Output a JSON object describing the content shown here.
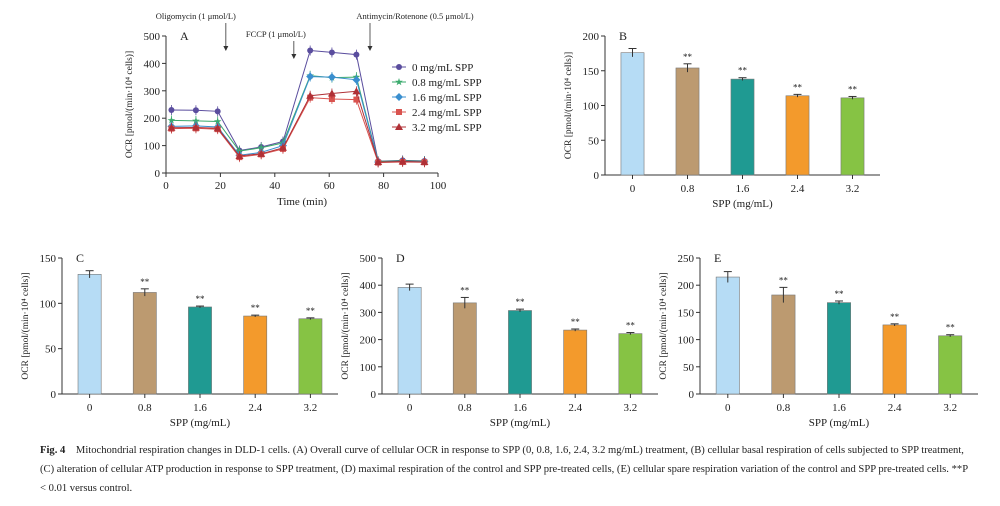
{
  "chart_data": [
    {
      "id": "A",
      "type": "line",
      "panel_label": "A",
      "xlabel": "Time (min)",
      "ylabel": "OCR [pmol/(min·10⁴ cells)]",
      "xlim": [
        0,
        100
      ],
      "ylim": [
        0,
        500
      ],
      "xticks": [
        0,
        20,
        40,
        60,
        80,
        100
      ],
      "yticks": [
        0,
        100,
        200,
        300,
        400,
        500
      ],
      "legend_position": "right",
      "annotations": [
        {
          "text": "Oligomycin (1 μmol/L)",
          "x": 22
        },
        {
          "text": "FCCP (1 μmol/L)",
          "x": 47
        },
        {
          "text": "Antimycin/Rotenone (0.5 μmol/L)",
          "x": 75
        }
      ],
      "series": [
        {
          "name": "0 mg/mL SPP",
          "color": "#5a4d9e",
          "marker": "circle",
          "x": [
            2,
            11,
            19,
            27,
            35,
            43,
            53,
            61,
            70,
            78,
            87,
            95
          ],
          "y": [
            230,
            229,
            225,
            82,
            95,
            115,
            447,
            440,
            432,
            43,
            46,
            44
          ]
        },
        {
          "name": "0.8 mg/mL SPP",
          "color": "#3aaa6c",
          "marker": "star",
          "x": [
            2,
            11,
            19,
            27,
            35,
            43,
            53,
            61,
            70,
            78,
            87,
            95
          ],
          "y": [
            192,
            190,
            188,
            80,
            92,
            110,
            355,
            348,
            350,
            42,
            44,
            43
          ]
        },
        {
          "name": "1.6 mg/mL SPP",
          "color": "#3a8fcf",
          "marker": "diamond",
          "x": [
            2,
            11,
            19,
            27,
            35,
            43,
            53,
            61,
            70,
            78,
            87,
            95
          ],
          "y": [
            170,
            172,
            168,
            65,
            75,
            100,
            352,
            350,
            340,
            40,
            42,
            41
          ]
        },
        {
          "name": "2.4 mg/mL SPP",
          "color": "#d9534f",
          "marker": "square",
          "x": [
            2,
            11,
            19,
            27,
            35,
            43,
            53,
            61,
            70,
            78,
            87,
            95
          ],
          "y": [
            162,
            163,
            160,
            58,
            68,
            88,
            275,
            270,
            268,
            38,
            40,
            39
          ]
        },
        {
          "name": "3.2 mg/mL SPP",
          "color": "#b03036",
          "marker": "triangle",
          "x": [
            2,
            11,
            19,
            27,
            35,
            43,
            53,
            61,
            70,
            78,
            87,
            95
          ],
          "y": [
            165,
            166,
            163,
            62,
            70,
            92,
            282,
            290,
            298,
            40,
            42,
            40
          ]
        }
      ]
    },
    {
      "id": "B",
      "type": "bar",
      "panel_label": "B",
      "xlabel": "SPP (mg/mL)",
      "ylabel": "OCR [pmol/(min·10⁴ cells)]",
      "ylim": [
        0,
        200
      ],
      "yticks": [
        0,
        50,
        100,
        150,
        200
      ],
      "categories": [
        "0",
        "0.8",
        "1.6",
        "2.4",
        "3.2"
      ],
      "values": [
        176,
        154,
        138,
        114,
        111
      ],
      "errors": [
        6,
        6,
        2,
        2,
        2
      ],
      "significance": [
        "",
        "**",
        "**",
        "**",
        "**"
      ],
      "colors": [
        "#b6dcf5",
        "#bc9a70",
        "#1f9a92",
        "#f39a2c",
        "#86c344"
      ]
    },
    {
      "id": "C",
      "type": "bar",
      "panel_label": "C",
      "xlabel": "SPP (mg/mL)",
      "ylabel": "OCR [pmol/(min·10⁴ cells)]",
      "ylim": [
        0,
        150
      ],
      "yticks": [
        0,
        50,
        100,
        150
      ],
      "categories": [
        "0",
        "0.8",
        "1.6",
        "2.4",
        "3.2"
      ],
      "values": [
        132,
        112,
        96,
        86,
        83
      ],
      "errors": [
        4,
        4,
        1,
        1,
        1
      ],
      "significance": [
        "",
        "**",
        "**",
        "**",
        "**"
      ],
      "colors": [
        "#b6dcf5",
        "#bc9a70",
        "#1f9a92",
        "#f39a2c",
        "#86c344"
      ]
    },
    {
      "id": "D",
      "type": "bar",
      "panel_label": "D",
      "xlabel": "SPP (mg/mL)",
      "ylabel": "OCR [pmol/(min·10⁴ cells)]",
      "ylim": [
        0,
        500
      ],
      "yticks": [
        0,
        100,
        200,
        300,
        400,
        500
      ],
      "categories": [
        "0",
        "0.8",
        "1.6",
        "2.4",
        "3.2"
      ],
      "values": [
        392,
        335,
        307,
        235,
        222
      ],
      "errors": [
        12,
        20,
        5,
        4,
        4
      ],
      "significance": [
        "",
        "**",
        "**",
        "**",
        "**"
      ],
      "colors": [
        "#b6dcf5",
        "#bc9a70",
        "#1f9a92",
        "#f39a2c",
        "#86c344"
      ]
    },
    {
      "id": "E",
      "type": "bar",
      "panel_label": "E",
      "xlabel": "SPP (mg/mL)",
      "ylabel": "OCR [pmol/(min·10⁴ cells)]",
      "ylim": [
        0,
        250
      ],
      "yticks": [
        0,
        50,
        100,
        150,
        200,
        250
      ],
      "categories": [
        "0",
        "0.8",
        "1.6",
        "2.4",
        "3.2"
      ],
      "values": [
        215,
        182,
        168,
        127,
        107
      ],
      "errors": [
        10,
        14,
        3,
        2,
        2
      ],
      "significance": [
        "",
        "**",
        "**",
        "**",
        "**"
      ],
      "colors": [
        "#b6dcf5",
        "#bc9a70",
        "#1f9a92",
        "#f39a2c",
        "#86c344"
      ]
    }
  ],
  "caption": {
    "label": "Fig. 4",
    "title": "Mitochondrial respiration changes in DLD-1 cells.",
    "body": "(A) Overall curve of cellular OCR in response to SPP (0, 0.8, 1.6, 2.4, 3.2 mg/mL) treatment, (B) cellular basal respiration of cells subjected to SPP treatment, (C) alteration of cellular ATP production in response to SPP treatment, (D) maximal respiration of the control and SPP pre-treated cells, (E) cellular spare respiration variation of the control and SPP pre-treated cells.",
    "significance_note": "**P < 0.01 versus control."
  }
}
